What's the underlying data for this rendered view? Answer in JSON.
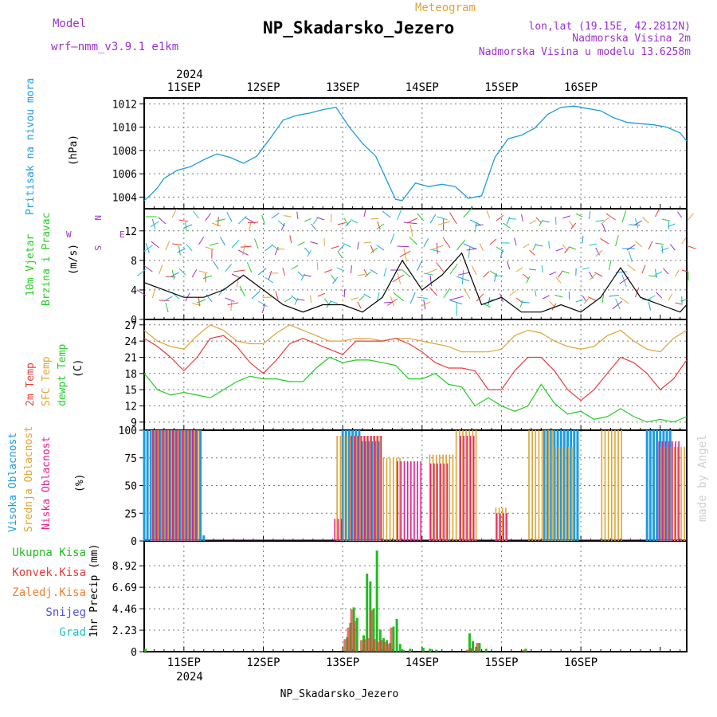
{
  "header": {
    "model_label": "Model",
    "model_name": "wrf—nmm_v3.9.1 e1km",
    "meteogram_label": "Meteogram",
    "station_name": "NP_Skadarsko_Jezero",
    "lonlat": "lon,lat (19.15E, 42.2812N)",
    "altitude": "Nadmorska Visina 2m",
    "model_altitude": "Nadmorska Visina u modelu 13.6258m",
    "year_top": "2024",
    "footer_station": "NP_Skadarsko_Jezero",
    "year_bottom": "2024",
    "credit": "made by Angel"
  },
  "colors": {
    "pressure": "#1e9be0",
    "temp2m": "#e83c3c",
    "sfc_temp": "#dfa434",
    "dewpt": "#22cc22",
    "high_cloud": "#1e9be0",
    "mid_cloud": "#dfa434",
    "low_cloud": "#e0208a",
    "total_precip": "#22bb22",
    "convective": "#e83c3c",
    "frozen": "#f08030",
    "snow": "#5050e0",
    "hail": "#22c0c0",
    "wind_black": "#000000",
    "wind_purple": "#9a30d0"
  },
  "chart_data": [
    {
      "type": "line",
      "panel": "pressure",
      "ylabel": "Pritisak na nivou mora",
      "unit": "(hPa)",
      "ylim": [
        1003,
        1012.5
      ],
      "yticks": [
        "1004",
        "1006",
        "1008",
        "1010",
        "1012"
      ],
      "x_hours": [
        0,
        2,
        4,
        6,
        10,
        14,
        18,
        22,
        26,
        30,
        34,
        38,
        42,
        46,
        50,
        54,
        58,
        62,
        66,
        70,
        74,
        76,
        78,
        82,
        86,
        90,
        94,
        98,
        102,
        106,
        110,
        114,
        118,
        122,
        126,
        130,
        134,
        138,
        142,
        146,
        150,
        154,
        158,
        162,
        164
      ],
      "series": [
        {
          "values": [
            1003.7,
            1004.2,
            1004.8,
            1005.6,
            1006.3,
            1006.6,
            1007.2,
            1007.7,
            1007.4,
            1006.9,
            1007.5,
            1009.0,
            1010.6,
            1011.0,
            1011.2,
            1011.5,
            1011.7,
            1010.0,
            1008.6,
            1007.5,
            1005.0,
            1003.8,
            1003.7,
            1005.2,
            1004.9,
            1005.1,
            1004.9,
            1003.9,
            1004.1,
            1007.4,
            1009.0,
            1009.3,
            1009.9,
            1011.1,
            1011.7,
            1011.8,
            1011.6,
            1011.4,
            1010.8,
            1010.4,
            1010.3,
            1010.2,
            1010.0,
            1009.5,
            1008.8
          ]
        }
      ]
    },
    {
      "type": "line",
      "panel": "wind",
      "ylabel": "10m Vjetar Brzina i Pravac",
      "unit": "(m/s)",
      "compass": [
        "N",
        "W",
        "E",
        "S"
      ],
      "ylim": [
        0,
        15
      ],
      "yticks": [
        "0",
        "4",
        "8",
        "12"
      ],
      "x_hours": [
        0,
        6,
        12,
        18,
        24,
        30,
        36,
        42,
        48,
        54,
        60,
        66,
        72,
        78,
        84,
        90,
        96,
        102,
        108,
        114,
        120,
        126,
        132,
        138,
        144,
        150,
        156,
        162,
        164
      ],
      "series": [
        {
          "name": "Brzina",
          "values": [
            5,
            4,
            3,
            3,
            4,
            6,
            4,
            2,
            1,
            2,
            2,
            1,
            3,
            8,
            4,
            6,
            9,
            2,
            3,
            1,
            1,
            2,
            1,
            3,
            7,
            3,
            2,
            1,
            2
          ]
        }
      ]
    },
    {
      "type": "line",
      "panel": "temperature",
      "ylabel": "2m Temp / SFC Temp / dewpt Temp",
      "unit": "(C)",
      "ylim": [
        7.5,
        28
      ],
      "yticks": [
        "9",
        "12",
        "15",
        "18",
        "21",
        "24",
        "27"
      ],
      "x_hours": [
        0,
        4,
        8,
        12,
        16,
        20,
        24,
        28,
        32,
        36,
        40,
        44,
        48,
        52,
        56,
        60,
        64,
        68,
        72,
        76,
        80,
        84,
        88,
        92,
        96,
        100,
        104,
        108,
        112,
        116,
        120,
        124,
        128,
        132,
        136,
        140,
        144,
        148,
        152,
        156,
        160,
        164
      ],
      "series": [
        {
          "name": "2m Temp",
          "values": [
            24.5,
            23,
            21,
            18.5,
            21,
            24.5,
            25,
            23,
            20,
            18,
            20.5,
            23.5,
            24.5,
            23.5,
            22.5,
            21.5,
            24,
            24,
            24,
            24.5,
            23.5,
            22,
            20,
            19,
            19,
            18.5,
            15,
            15,
            18.5,
            21,
            21,
            18.5,
            15,
            13,
            15,
            18,
            21,
            20,
            18,
            15,
            17,
            20.5
          ]
        },
        {
          "name": "SFC Temp",
          "values": [
            26,
            24,
            23,
            22.5,
            25,
            27,
            26,
            24,
            23.5,
            23.5,
            25.5,
            27,
            26,
            25,
            24,
            24,
            24.5,
            24.5,
            24,
            24.5,
            24.5,
            24,
            23.5,
            23,
            22,
            22,
            22,
            22.5,
            25,
            26,
            25.5,
            24,
            23,
            22.5,
            23,
            25,
            26,
            24,
            22.5,
            22,
            24.5,
            26
          ]
        },
        {
          "name": "dewpt Temp",
          "values": [
            18,
            15,
            14,
            14.5,
            14,
            13.5,
            15,
            16.5,
            17.5,
            17,
            17,
            16.5,
            16.5,
            19,
            21,
            20,
            20.5,
            20.5,
            20,
            19.5,
            17,
            17,
            18,
            16,
            15.5,
            12,
            13.5,
            12,
            11,
            12,
            16,
            12.5,
            10.5,
            11,
            9.5,
            10,
            11.5,
            10,
            9,
            9.5,
            9,
            10
          ]
        }
      ]
    },
    {
      "type": "bar",
      "panel": "clouds",
      "ylabel": "Visoka Oblacnost / Srednja Oblacnost / Niska Oblacnost",
      "unit": "(%)",
      "ylim": [
        0,
        100
      ],
      "yticks": [
        "0",
        "25",
        "50",
        "75",
        "100"
      ],
      "series": [
        {
          "name": "Visoka Oblacnost",
          "segments": [
            [
              0,
              18,
              100
            ],
            [
              18,
              19,
              5
            ],
            [
              60,
              66,
              100
            ],
            [
              66,
              72,
              90
            ],
            [
              121,
              132,
              100
            ],
            [
              152,
              160,
              100
            ]
          ]
        },
        {
          "name": "Srednja Oblacnost",
          "segments": [
            [
              2,
              17,
              100
            ],
            [
              58,
              72,
              95
            ],
            [
              70,
              78,
              75
            ],
            [
              86,
              94,
              78
            ],
            [
              94,
              101,
              100
            ],
            [
              106,
              110,
              30
            ],
            [
              116,
              124,
              100
            ],
            [
              124,
              130,
              85
            ],
            [
              138,
              145,
              100
            ],
            [
              156,
              164,
              85
            ]
          ]
        },
        {
          "name": "Niska Oblacnost",
          "segments": [
            [
              2,
              16,
              100
            ],
            [
              57,
              60,
              20
            ],
            [
              62,
              72,
              95
            ],
            [
              76,
              84,
              72
            ],
            [
              86,
              92,
              70
            ],
            [
              95,
              100,
              95
            ],
            [
              106,
              110,
              25
            ],
            [
              155,
              162,
              90
            ]
          ]
        }
      ]
    },
    {
      "type": "bar",
      "panel": "precip",
      "ylabel": "1hr Precip",
      "unit": "(mm)",
      "ylim": [
        0,
        11.5
      ],
      "yticks": [
        "0",
        "2.23",
        "4.46",
        "6.69",
        "8.92"
      ],
      "legend": [
        "Ukupna Kisa",
        "Konvek.Kisa",
        "Zaledj.Kisa",
        "Snijeg",
        "Grad"
      ],
      "series": [
        {
          "name": "Ukupna Kisa",
          "bars": [
            [
              0,
              0.3
            ],
            [
              61,
              1.5
            ],
            [
              62,
              3.0
            ],
            [
              63,
              4.6
            ],
            [
              64,
              3.5
            ],
            [
              66,
              1.7
            ],
            [
              67,
              8.1
            ],
            [
              68,
              7.3
            ],
            [
              69,
              4.5
            ],
            [
              70,
              10.5
            ],
            [
              71,
              2.3
            ],
            [
              72,
              1.4
            ],
            [
              73,
              1.2
            ],
            [
              74,
              0.9
            ],
            [
              75,
              2.6
            ],
            [
              76,
              3.4
            ],
            [
              77,
              0.8
            ],
            [
              78,
              0.2
            ],
            [
              80,
              0.3
            ],
            [
              84,
              0.4
            ],
            [
              86,
              0.3
            ],
            [
              88,
              0.2
            ],
            [
              98,
              1.9
            ],
            [
              99,
              1.1
            ],
            [
              100,
              0.5
            ],
            [
              101,
              0.9
            ],
            [
              103,
              0.3
            ],
            [
              115,
              0.3
            ]
          ]
        },
        {
          "name": "Konvek.Kisa",
          "bars": [
            [
              61,
              1.3
            ],
            [
              62,
              2.5
            ],
            [
              63,
              4.4
            ],
            [
              64,
              3.2
            ],
            [
              66,
              1.2
            ],
            [
              67,
              1.3
            ],
            [
              68,
              1.4
            ],
            [
              69,
              4.3
            ],
            [
              70,
              1.3
            ],
            [
              71,
              1.0
            ],
            [
              72,
              1.2
            ],
            [
              73,
              1.0
            ],
            [
              74,
              0.8
            ],
            [
              75,
              2.5
            ],
            [
              98,
              0.2
            ],
            [
              99,
              0.4
            ],
            [
              101,
              0.9
            ],
            [
              115,
              0.2
            ]
          ]
        }
      ]
    }
  ],
  "x_axis": {
    "start_hour": 0,
    "end_hour": 164,
    "day_offset": 12,
    "days": [
      "11SEP",
      "12SEP",
      "13SEP",
      "14SEP",
      "15SEP",
      "16SEP"
    ]
  }
}
